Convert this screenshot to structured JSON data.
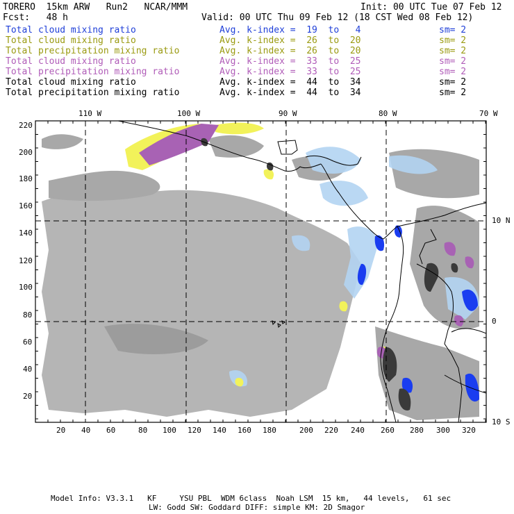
{
  "header": {
    "model": "TORERO  15km ARW   Run2   NCAR/MMM",
    "init": "Init: 00 UTC Tue 07 Feb 12",
    "fcst": "Fcst:   48 h",
    "valid": "Valid: 00 UTC Thu 09 Feb 12 (18 CST Wed 08 Feb 12)"
  },
  "legend": [
    {
      "field": "Total cloud mixing ratio",
      "kidx": "Avg. k-index =  19  to   4",
      "sm": "sm= 2",
      "color": "#1f3fd8"
    },
    {
      "field": "Total cloud mixing ratio",
      "kidx": "Avg. k-index =  26  to  20",
      "sm": "sm= 2",
      "color": "#9a9a10"
    },
    {
      "field": "Total precipitation mixing ratio",
      "kidx": "Avg. k-index =  26  to  20",
      "sm": "sm= 2",
      "color": "#9a9a10"
    },
    {
      "field": "Total cloud mixing ratio",
      "kidx": "Avg. k-index =  33  to  25",
      "sm": "sm= 2",
      "color": "#b05cb8"
    },
    {
      "field": "Total precipitation mixing ratio",
      "kidx": "Avg. k-index =  33  to  25",
      "sm": "sm= 2",
      "color": "#b05cb8"
    },
    {
      "field": "Total cloud mixing ratio",
      "kidx": "Avg. k-index =  44  to  34",
      "sm": "sm= 2",
      "color": "#000000"
    },
    {
      "field": "Total precipitation mixing ratio",
      "kidx": "Avg. k-index =  44  to  34",
      "sm": "sm= 2",
      "color": "#000000"
    }
  ],
  "axes": {
    "top_lon": [
      "110 W",
      "100 W",
      "90 W",
      "80 W",
      "70 W"
    ],
    "right_lat": [
      "10 N",
      "0",
      "10 S"
    ],
    "left_y": [
      "220",
      "200",
      "180",
      "160",
      "140",
      "120",
      "100",
      "80",
      "60",
      "40",
      "20"
    ],
    "bottom_x": [
      "20",
      "40",
      "60",
      "80",
      "100",
      "120",
      "140",
      "160",
      "180",
      "200",
      "220",
      "240",
      "260",
      "280",
      "300",
      "320"
    ]
  },
  "footer": {
    "line1": "Model Info: V3.3.1   KF     YSU PBL  WDM 6class  Noah LSM  15 km,   44 levels,   61 sec",
    "line2": "LW: Godd SW: Goddard DIFF: simple KM: 2D Smagor"
  },
  "colors": {
    "cloud_gray": "#a8a8a8",
    "light_blue": "#b3d4f2",
    "blue": "#1a3df0",
    "yellow": "#f2f25a",
    "purple": "#a862b4",
    "dark": "#3a3a3a"
  }
}
